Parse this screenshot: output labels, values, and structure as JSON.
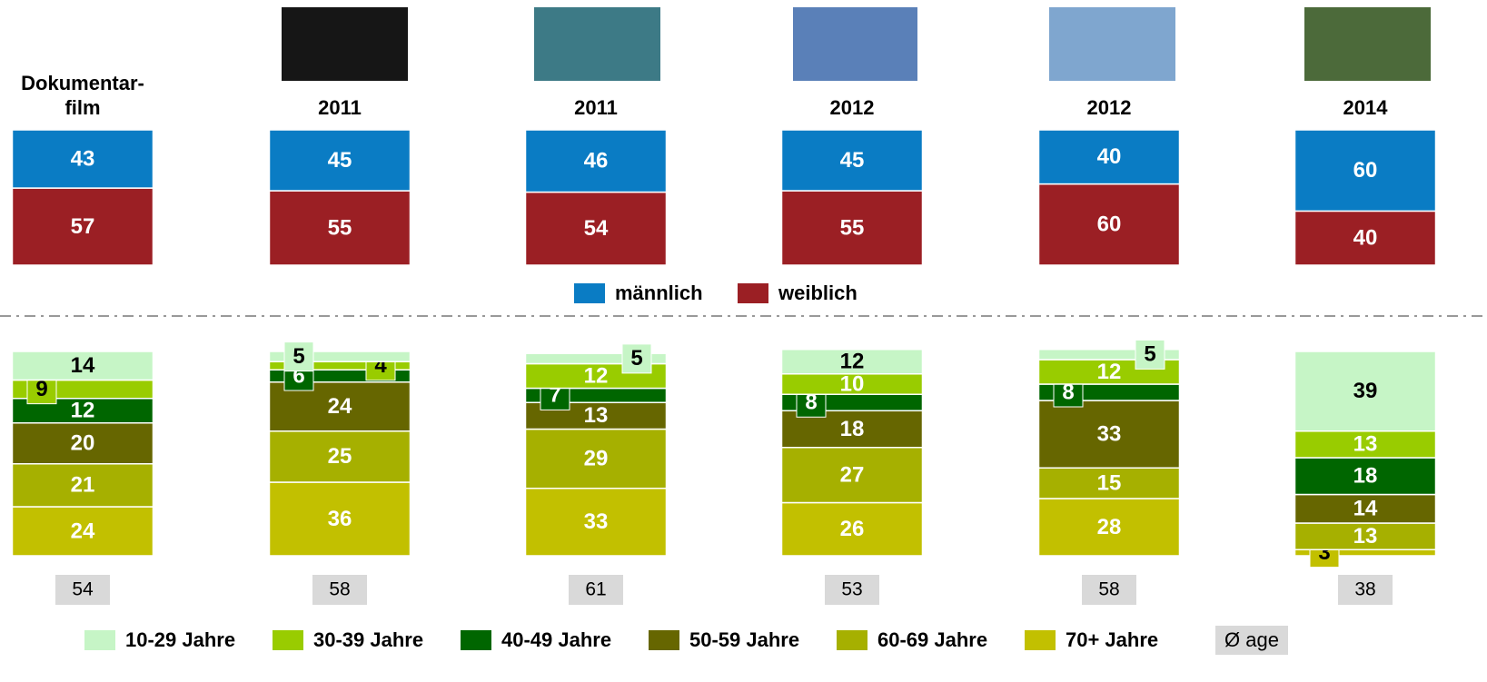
{
  "chart_data": [
    {
      "type": "bar",
      "stacked": true,
      "categories": [
        "Dokumentar-film",
        "2011",
        "2011",
        "2012",
        "2012",
        "2014"
      ],
      "ylim": [
        0,
        100
      ],
      "series": [
        {
          "name": "männlich",
          "color": "#0a7cc4",
          "label_color": "#ffffff",
          "values": [
            43,
            45,
            46,
            45,
            40,
            60
          ]
        },
        {
          "name": "weiblich",
          "color": "#9b1f24",
          "label_color": "#ffffff",
          "values": [
            57,
            55,
            54,
            55,
            60,
            40
          ]
        }
      ]
    },
    {
      "type": "bar",
      "stacked": true,
      "ylim": [
        0,
        100
      ],
      "series": [
        {
          "name": "10-29 Jahre",
          "color": "#c6f5c6",
          "label_color": "#000000",
          "values": [
            14,
            5,
            5,
            12,
            5,
            39
          ]
        },
        {
          "name": "30-39 Jahre",
          "color": "#99cc00",
          "label_color": "#ffffff",
          "values": [
            9,
            4,
            12,
            10,
            12,
            13
          ]
        },
        {
          "name": "40-49 Jahre",
          "color": "#006600",
          "label_color": "#ffffff",
          "values": [
            12,
            6,
            7,
            8,
            8,
            18
          ]
        },
        {
          "name": "50-59 Jahre",
          "color": "#666600",
          "label_color": "#ffffff",
          "values": [
            20,
            24,
            13,
            18,
            33,
            14
          ]
        },
        {
          "name": "60-69 Jahre",
          "color": "#a6b000",
          "label_color": "#ffffff",
          "values": [
            21,
            25,
            29,
            27,
            15,
            13
          ]
        },
        {
          "name": "70+ Jahre",
          "color": "#c2c000",
          "label_color": "#ffffff",
          "values": [
            24,
            36,
            33,
            26,
            28,
            3
          ]
        }
      ],
      "avg_label": "Ø age",
      "avg_values": [
        54,
        58,
        61,
        53,
        58,
        38
      ]
    }
  ]
}
